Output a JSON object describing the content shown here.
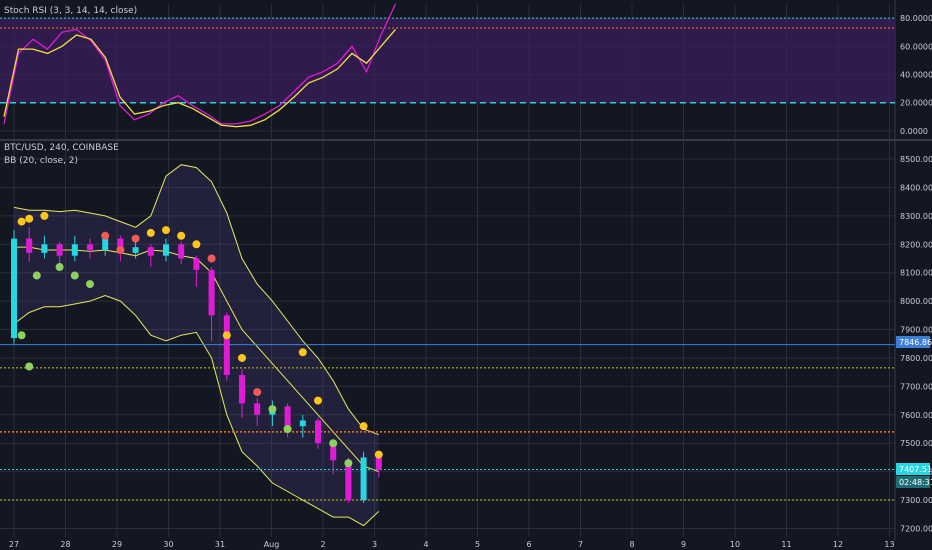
{
  "colors": {
    "bg": "#131722",
    "grid": "#2a2e39",
    "up": "#26d6e0",
    "down": "#e01bd6",
    "stoch_k": "#e01bd6",
    "stoch_d": "#f0e040",
    "band": "#e8e85a",
    "dot_yellow": "#ffc61a",
    "dot_green": "#8fd15c",
    "dot_red": "#f05a5a",
    "rsi_fill": "#3a1f5c",
    "line_blue": "#3d7fd6",
    "line_orange": "#f07a1a",
    "line_cyan": "#26d6e0",
    "line_yellow": "#c8c41a"
  },
  "stoch": {
    "title": "Stoch RSI (3, 3, 14, 14, close)",
    "y_ticks": [
      "80.0000",
      "60.0000",
      "40.0000",
      "20.0000",
      "0.0000"
    ]
  },
  "main": {
    "title": "BTC/USD, 240, COINBASE",
    "indicator": "BB (20, close, 2)",
    "y_ticks": [
      "8500.00",
      "8400.00",
      "8300.00",
      "8200.00",
      "8100.00",
      "8000.00",
      "7900.00",
      "7800.00",
      "7700.00",
      "7600.00",
      "7500.00",
      "7400.00",
      "7300.00",
      "7200.00"
    ],
    "price_tag": "7407.51",
    "time_tag": "02:48:31",
    "level_tag": "7846.86"
  },
  "x_labels": [
    "27",
    "28",
    "29",
    "30",
    "31",
    "Aug",
    "2",
    "3",
    "4",
    "5",
    "6",
    "7",
    "8",
    "9",
    "10",
    "11",
    "12",
    "13"
  ],
  "chart_data": [
    {
      "type": "line",
      "title": "Stoch RSI (3, 3, 14, 14, close)",
      "ylim": [
        -5,
        90
      ],
      "levels": [
        80,
        20
      ],
      "series": [
        {
          "values": [
            5,
            55,
            65,
            58,
            70,
            72,
            64,
            50,
            18,
            8,
            12,
            20,
            25,
            18,
            12,
            5,
            5,
            7,
            12,
            18,
            28,
            38,
            42,
            48,
            60,
            42,
            68,
            90
          ]
        },
        {
          "values": [
            10,
            58,
            58,
            55,
            60,
            68,
            65,
            52,
            24,
            12,
            14,
            18,
            20,
            16,
            10,
            4,
            3,
            4,
            8,
            15,
            24,
            34,
            38,
            44,
            55,
            48,
            60,
            72
          ]
        }
      ]
    },
    {
      "type": "candlestick",
      "title": "BTC/USD, 240, COINBASE",
      "ylim": [
        7170,
        8560
      ],
      "x": [
        "27",
        "28",
        "29",
        "30",
        "31",
        "Aug",
        "2",
        "3",
        "4",
        "5",
        "6",
        "7",
        "8",
        "9",
        "10",
        "11",
        "12",
        "13"
      ],
      "candles": [
        [
          7870,
          8220,
          7850,
          8250
        ],
        [
          8220,
          8170,
          8140,
          8260
        ],
        [
          8170,
          8200,
          8150,
          8230
        ],
        [
          8200,
          8160,
          8130,
          8210
        ],
        [
          8160,
          8200,
          8140,
          8230
        ],
        [
          8200,
          8180,
          8150,
          8220
        ],
        [
          8180,
          8220,
          8160,
          8240
        ],
        [
          8220,
          8170,
          8140,
          8230
        ],
        [
          8170,
          8190,
          8150,
          8210
        ],
        [
          8190,
          8160,
          8120,
          8200
        ],
        [
          8160,
          8200,
          8140,
          8220
        ],
        [
          8200,
          8150,
          8130,
          8210
        ],
        [
          8150,
          8110,
          8050,
          8160
        ],
        [
          8110,
          7950,
          7860,
          8120
        ],
        [
          7950,
          7740,
          7720,
          7960
        ],
        [
          7740,
          7640,
          7590,
          7760
        ],
        [
          7640,
          7600,
          7560,
          7660
        ],
        [
          7600,
          7630,
          7560,
          7650
        ],
        [
          7630,
          7560,
          7520,
          7640
        ],
        [
          7560,
          7580,
          7520,
          7600
        ],
        [
          7580,
          7500,
          7480,
          7590
        ],
        [
          7500,
          7440,
          7390,
          7510
        ],
        [
          7440,
          7300,
          7290,
          7450
        ],
        [
          7300,
          7450,
          7290,
          7470
        ],
        [
          7450,
          7407,
          7380,
          7470
        ]
      ],
      "bb_upper": [
        8330,
        8320,
        8320,
        8315,
        8320,
        8310,
        8300,
        8280,
        8260,
        8300,
        8440,
        8480,
        8470,
        8420,
        8310,
        8150,
        8060,
        8000,
        7930,
        7860,
        7800,
        7720,
        7620,
        7550,
        7530
      ],
      "bb_mid": [
        8190,
        8190,
        8180,
        8180,
        8180,
        8175,
        8180,
        8170,
        8160,
        8180,
        8175,
        8160,
        8150,
        8100,
        8000,
        7900,
        7840,
        7780,
        7720,
        7660,
        7600,
        7540,
        7480,
        7420,
        7400
      ],
      "bb_lower": [
        7920,
        7960,
        7980,
        7980,
        7990,
        8000,
        8020,
        8000,
        7950,
        7880,
        7860,
        7880,
        7890,
        7800,
        7600,
        7470,
        7420,
        7360,
        7330,
        7300,
        7270,
        7240,
        7240,
        7210,
        7260
      ],
      "dots": [
        {
          "x": 0.5,
          "y": 8280,
          "color": "yellow"
        },
        {
          "x": 1,
          "y": 8290,
          "color": "yellow"
        },
        {
          "x": 2,
          "y": 8300,
          "color": "yellow"
        },
        {
          "x": 0.5,
          "y": 7880,
          "color": "green"
        },
        {
          "x": 1,
          "y": 7770,
          "color": "green"
        },
        {
          "x": 1.5,
          "y": 8090,
          "color": "green"
        },
        {
          "x": 3,
          "y": 8120,
          "color": "green"
        },
        {
          "x": 4,
          "y": 8090,
          "color": "green"
        },
        {
          "x": 5,
          "y": 8060,
          "color": "green"
        },
        {
          "x": 6,
          "y": 8230,
          "color": "red"
        },
        {
          "x": 7,
          "y": 8180,
          "color": "red"
        },
        {
          "x": 8,
          "y": 8220,
          "color": "red"
        },
        {
          "x": 9,
          "y": 8240,
          "color": "yellow"
        },
        {
          "x": 10,
          "y": 8250,
          "color": "yellow"
        },
        {
          "x": 11,
          "y": 8230,
          "color": "yellow"
        },
        {
          "x": 12,
          "y": 8200,
          "color": "yellow"
        },
        {
          "x": 13,
          "y": 8150,
          "color": "red"
        },
        {
          "x": 14,
          "y": 7880,
          "color": "yellow"
        },
        {
          "x": 15,
          "y": 7800,
          "color": "yellow"
        },
        {
          "x": 16,
          "y": 7680,
          "color": "red"
        },
        {
          "x": 17,
          "y": 7620,
          "color": "green"
        },
        {
          "x": 18,
          "y": 7550,
          "color": "green"
        },
        {
          "x": 19,
          "y": 7820,
          "color": "yellow"
        },
        {
          "x": 20,
          "y": 7650,
          "color": "yellow"
        },
        {
          "x": 21,
          "y": 7500,
          "color": "green"
        },
        {
          "x": 22,
          "y": 7430,
          "color": "green"
        },
        {
          "x": 23,
          "y": 7560,
          "color": "yellow"
        },
        {
          "x": 24,
          "y": 7460,
          "color": "yellow"
        }
      ],
      "levels": [
        {
          "y": 7846.86,
          "color": "blue",
          "style": "solid"
        },
        {
          "y": 7765,
          "color": "yellow",
          "style": "dotted"
        },
        {
          "y": 7540,
          "color": "orange",
          "style": "dotted"
        },
        {
          "y": 7407.51,
          "color": "cyan",
          "style": "dotted"
        },
        {
          "y": 7300,
          "color": "yellow",
          "style": "dotted"
        }
      ]
    }
  ]
}
